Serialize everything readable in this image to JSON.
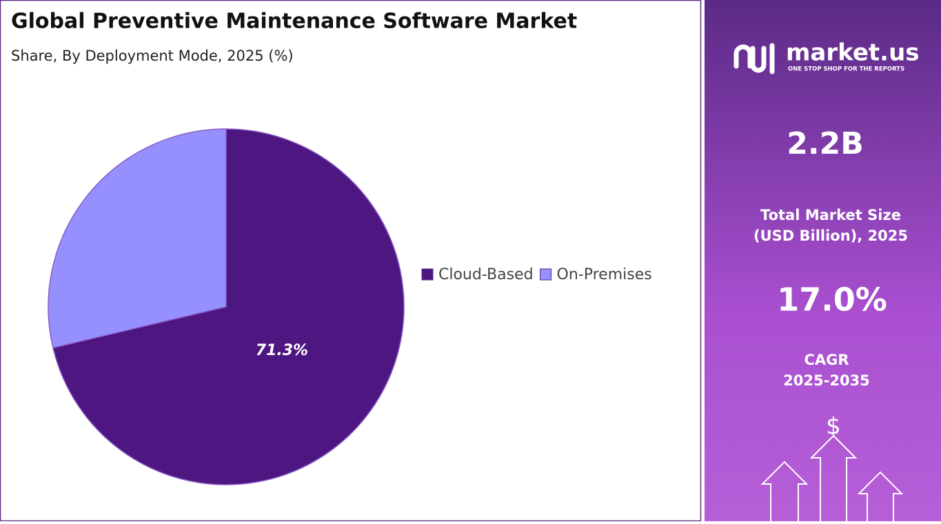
{
  "chart_data": {
    "type": "pie",
    "title": "Global Preventive Maintenance Software Market",
    "subtitle": "Share, By Deployment Mode, 2025 (%)",
    "categories": [
      "Cloud-Based",
      "On-Premises"
    ],
    "values": [
      71.3,
      28.7
    ],
    "value_labels": [
      "71.3%",
      null
    ],
    "colors": [
      "#4e1680",
      "#9590fe"
    ]
  },
  "panel": {
    "brand": "market.us",
    "tagline": "ONE STOP SHOP FOR THE REPORTS",
    "market_size": "2.2B",
    "market_size_label": [
      "Total Market Size",
      "(USD Billion), 2025"
    ],
    "cagr": "17.0%",
    "cagr_label": [
      "CAGR",
      "2025-2035"
    ],
    "icon": "$"
  }
}
